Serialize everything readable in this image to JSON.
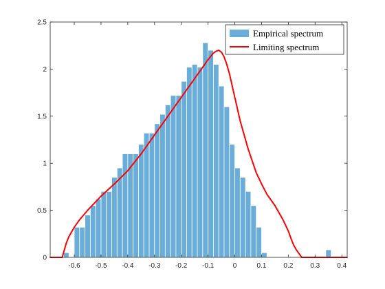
{
  "chart_data": {
    "type": "bar",
    "title": "",
    "xlabel": "",
    "ylabel": "",
    "xlim": [
      -0.69,
      0.42
    ],
    "ylim": [
      0,
      2.5
    ],
    "xticks": [
      -0.6,
      -0.5,
      -0.4,
      -0.3,
      -0.2,
      -0.1,
      0,
      0.1,
      0.2,
      0.3,
      0.4
    ],
    "yticks": [
      0,
      0.5,
      1,
      1.5,
      2,
      2.5
    ],
    "grid": false,
    "legend_position": "top-right",
    "bin_width": 0.02,
    "series": [
      {
        "name": "Empirical spectrum",
        "kind": "histogram",
        "color": "#6aadd9",
        "bins": [
          {
            "x": -0.64,
            "value": 0.05
          },
          {
            "x": -0.62,
            "value": 0.0
          },
          {
            "x": -0.6,
            "value": 0.32
          },
          {
            "x": -0.58,
            "value": 0.32
          },
          {
            "x": -0.56,
            "value": 0.45
          },
          {
            "x": -0.54,
            "value": 0.55
          },
          {
            "x": -0.52,
            "value": 0.62
          },
          {
            "x": -0.5,
            "value": 0.7
          },
          {
            "x": -0.48,
            "value": 0.7
          },
          {
            "x": -0.46,
            "value": 0.85
          },
          {
            "x": -0.44,
            "value": 0.95
          },
          {
            "x": -0.42,
            "value": 1.1
          },
          {
            "x": -0.4,
            "value": 1.1
          },
          {
            "x": -0.38,
            "value": 1.1
          },
          {
            "x": -0.36,
            "value": 1.2
          },
          {
            "x": -0.34,
            "value": 1.32
          },
          {
            "x": -0.32,
            "value": 1.32
          },
          {
            "x": -0.3,
            "value": 1.42
          },
          {
            "x": -0.28,
            "value": 1.52
          },
          {
            "x": -0.26,
            "value": 1.62
          },
          {
            "x": -0.24,
            "value": 1.72
          },
          {
            "x": -0.22,
            "value": 1.72
          },
          {
            "x": -0.2,
            "value": 1.87
          },
          {
            "x": -0.18,
            "value": 2.02
          },
          {
            "x": -0.16,
            "value": 2.05
          },
          {
            "x": -0.14,
            "value": 2.02
          },
          {
            "x": -0.12,
            "value": 2.28
          },
          {
            "x": -0.1,
            "value": 2.2
          },
          {
            "x": -0.08,
            "value": 2.05
          },
          {
            "x": -0.06,
            "value": 1.82
          },
          {
            "x": -0.04,
            "value": 1.6
          },
          {
            "x": -0.02,
            "value": 1.2
          },
          {
            "x": 0.0,
            "value": 0.95
          },
          {
            "x": 0.02,
            "value": 0.85
          },
          {
            "x": 0.04,
            "value": 0.7
          },
          {
            "x": 0.06,
            "value": 0.55
          },
          {
            "x": 0.08,
            "value": 0.32
          },
          {
            "x": 0.1,
            "value": 0.05
          },
          {
            "x": 0.12,
            "value": 0.0
          },
          {
            "x": 0.34,
            "value": 0.08
          }
        ]
      },
      {
        "name": "Limiting spectrum",
        "kind": "line",
        "color": "#ff0000",
        "x": [
          -0.69,
          -0.645,
          -0.64,
          -0.635,
          -0.63,
          -0.62,
          -0.6,
          -0.58,
          -0.55,
          -0.5,
          -0.45,
          -0.4,
          -0.35,
          -0.3,
          -0.25,
          -0.2,
          -0.15,
          -0.12,
          -0.1,
          -0.08,
          -0.07,
          -0.06,
          -0.05,
          -0.04,
          -0.03,
          -0.02,
          0.0,
          0.02,
          0.05,
          0.08,
          0.1,
          0.12,
          0.15,
          0.18,
          0.2,
          0.21,
          0.22,
          0.23,
          0.24,
          0.245,
          0.25,
          0.42
        ],
        "y": [
          0,
          0,
          0.05,
          0.1,
          0.15,
          0.22,
          0.32,
          0.4,
          0.5,
          0.65,
          0.78,
          0.92,
          1.1,
          1.3,
          1.5,
          1.7,
          1.9,
          2.02,
          2.1,
          2.17,
          2.19,
          2.2,
          2.18,
          2.13,
          2.05,
          1.95,
          1.7,
          1.45,
          1.15,
          0.9,
          0.78,
          0.67,
          0.55,
          0.4,
          0.28,
          0.2,
          0.13,
          0.08,
          0.04,
          0.02,
          0,
          0
        ]
      }
    ]
  }
}
